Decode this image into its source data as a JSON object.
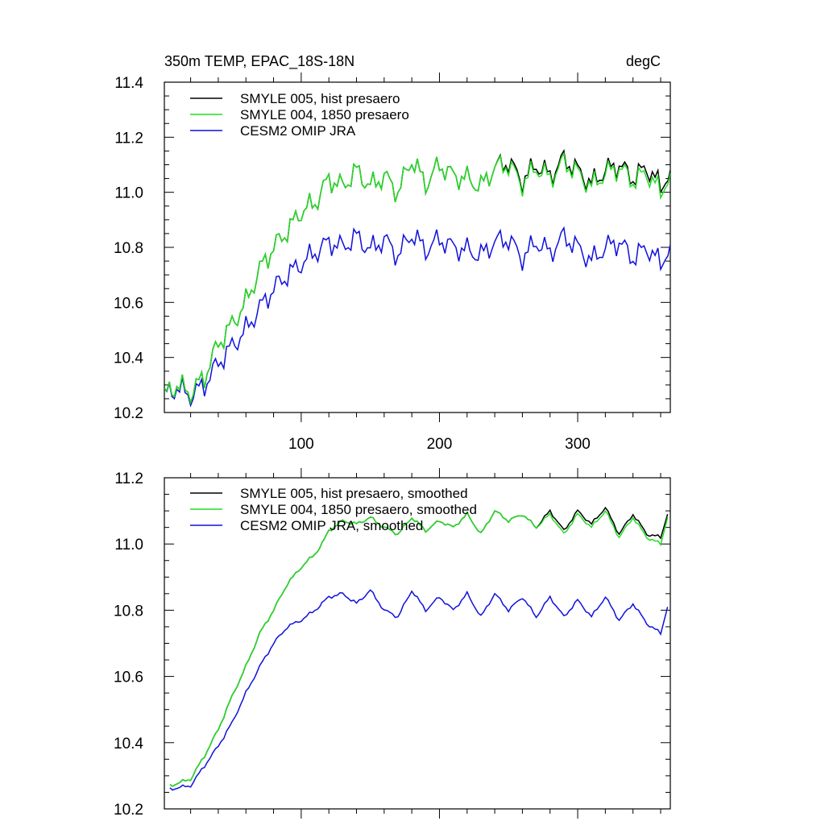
{
  "chart_data": [
    {
      "type": "line",
      "title_left": "350m TEMP, EPAC_18S-18N",
      "title_right": "degC",
      "xlabel": "",
      "ylabel": "",
      "xlim": [
        1,
        367
      ],
      "ylim": [
        10.2,
        11.4
      ],
      "xticks": [
        100,
        200,
        300
      ],
      "xtick_labels": [
        "100",
        "200",
        "300"
      ],
      "yticks": [
        10.2,
        10.4,
        10.6,
        10.8,
        11.0,
        11.2,
        11.4
      ],
      "ytick_labels": [
        "10.2",
        "10.4",
        "10.6",
        "10.8",
        "11.0",
        "11.2",
        "11.4"
      ],
      "legend_position": "top-left",
      "series": [
        {
          "name": "SMYLE 005, hist presaero",
          "color": "#000000",
          "x": [
            1,
            10,
            20,
            30,
            40,
            50,
            60,
            70,
            80,
            90,
            100,
            110,
            120,
            130,
            140,
            150,
            160,
            170,
            180,
            190,
            200,
            210,
            220,
            230,
            240,
            250,
            260,
            270,
            280,
            290,
            300,
            310,
            320,
            330,
            340,
            350,
            360,
            367
          ],
          "values": [
            10.26,
            10.3,
            10.27,
            10.33,
            10.45,
            10.52,
            10.6,
            10.72,
            10.8,
            10.86,
            10.93,
            10.96,
            11.05,
            11.02,
            11.08,
            11.02,
            11.06,
            11.0,
            11.12,
            11.03,
            11.1,
            11.06,
            11.05,
            11.02,
            11.09,
            11.11,
            11.04,
            11.1,
            11.06,
            11.12,
            11.08,
            11.03,
            11.08,
            11.1,
            11.05,
            11.09,
            11.02,
            11.08
          ]
        },
        {
          "name": "SMYLE 004, 1850 presaero",
          "color": "#22dd22",
          "x": [
            1,
            10,
            20,
            30,
            40,
            50,
            60,
            70,
            80,
            90,
            100,
            110,
            120,
            130,
            140,
            150,
            160,
            170,
            180,
            190,
            200,
            210,
            220,
            230,
            240,
            250,
            260,
            270,
            280,
            290,
            300,
            310,
            320,
            330,
            340,
            350,
            360,
            367
          ],
          "values": [
            10.26,
            10.3,
            10.27,
            10.33,
            10.45,
            10.52,
            10.6,
            10.72,
            10.8,
            10.86,
            10.93,
            10.96,
            11.05,
            11.02,
            11.08,
            11.02,
            11.06,
            11.0,
            11.12,
            11.03,
            11.1,
            11.06,
            11.05,
            11.02,
            11.09,
            11.1,
            11.03,
            11.09,
            11.05,
            11.11,
            11.07,
            11.02,
            11.07,
            11.09,
            11.04,
            11.07,
            11.0,
            11.07
          ]
        },
        {
          "name": "CESM2 OMIP JRA",
          "color": "#1010dd",
          "x": [
            1,
            10,
            20,
            30,
            40,
            50,
            60,
            70,
            80,
            90,
            100,
            110,
            120,
            130,
            140,
            150,
            160,
            170,
            180,
            190,
            200,
            210,
            220,
            230,
            240,
            250,
            260,
            270,
            280,
            290,
            300,
            310,
            320,
            330,
            340,
            350,
            360,
            367
          ],
          "values": [
            10.26,
            10.29,
            10.26,
            10.3,
            10.38,
            10.44,
            10.5,
            10.58,
            10.65,
            10.7,
            10.74,
            10.78,
            10.82,
            10.8,
            10.84,
            10.79,
            10.83,
            10.77,
            10.85,
            10.79,
            10.83,
            10.8,
            10.79,
            10.77,
            10.82,
            10.83,
            10.76,
            10.82,
            10.78,
            10.84,
            10.8,
            10.75,
            10.8,
            10.82,
            10.76,
            10.8,
            10.74,
            10.81
          ]
        }
      ]
    },
    {
      "type": "line",
      "title_left": "",
      "title_right": "",
      "xlabel": "",
      "ylabel": "",
      "xlim": [
        1,
        367
      ],
      "ylim": [
        10.2,
        11.2
      ],
      "xticks": [
        100,
        200,
        300
      ],
      "xtick_labels": [],
      "yticks": [
        10.2,
        10.4,
        10.6,
        10.8,
        11.0,
        11.2
      ],
      "ytick_labels": [
        "10.2",
        "10.4",
        "10.6",
        "10.8",
        "11.0",
        "11.2"
      ],
      "legend_position": "top-left",
      "series": [
        {
          "name": "SMYLE 005, hist presaero, smoothed",
          "color": "#000000",
          "x": [
            5,
            20,
            30,
            40,
            50,
            60,
            70,
            80,
            90,
            100,
            110,
            115,
            120,
            130,
            140,
            150,
            160,
            170,
            180,
            190,
            200,
            210,
            220,
            230,
            240,
            250,
            260,
            270,
            280,
            290,
            300,
            310,
            320,
            330,
            340,
            350,
            360,
            365
          ],
          "values": [
            10.27,
            10.29,
            10.36,
            10.44,
            10.54,
            10.63,
            10.73,
            10.8,
            10.88,
            10.93,
            10.97,
            11.0,
            11.04,
            11.07,
            11.06,
            11.08,
            11.05,
            11.03,
            11.08,
            11.04,
            11.07,
            11.05,
            11.09,
            11.03,
            11.1,
            11.07,
            11.09,
            11.05,
            11.1,
            11.04,
            11.1,
            11.06,
            11.11,
            11.03,
            11.09,
            11.03,
            11.02,
            11.09
          ]
        },
        {
          "name": "SMYLE 004, 1850 presaero, smoothed",
          "color": "#22dd22",
          "x": [
            5,
            20,
            30,
            40,
            50,
            60,
            70,
            80,
            90,
            100,
            110,
            115,
            120,
            130,
            140,
            150,
            160,
            170,
            180,
            190,
            200,
            210,
            220,
            230,
            240,
            250,
            260,
            270,
            280,
            290,
            300,
            310,
            320,
            330,
            340,
            350,
            360,
            365
          ],
          "values": [
            10.27,
            10.29,
            10.36,
            10.44,
            10.54,
            10.63,
            10.73,
            10.8,
            10.88,
            10.93,
            10.97,
            11.0,
            11.04,
            11.07,
            11.06,
            11.08,
            11.05,
            11.03,
            11.08,
            11.04,
            11.07,
            11.05,
            11.09,
            11.03,
            11.1,
            11.07,
            11.09,
            11.05,
            11.09,
            11.03,
            11.09,
            11.05,
            11.1,
            11.02,
            11.08,
            11.02,
            11.0,
            11.08
          ]
        },
        {
          "name": "CESM2 OMIP JRA, smoothed",
          "color": "#1010dd",
          "x": [
            5,
            20,
            30,
            40,
            50,
            60,
            70,
            80,
            90,
            100,
            110,
            115,
            120,
            130,
            140,
            150,
            160,
            170,
            180,
            190,
            200,
            210,
            220,
            230,
            240,
            250,
            260,
            270,
            280,
            290,
            300,
            310,
            320,
            330,
            340,
            350,
            360,
            365
          ],
          "values": [
            10.26,
            10.27,
            10.33,
            10.39,
            10.46,
            10.55,
            10.63,
            10.7,
            10.75,
            10.77,
            10.8,
            10.82,
            10.84,
            10.85,
            10.82,
            10.86,
            10.8,
            10.78,
            10.86,
            10.8,
            10.84,
            10.8,
            10.85,
            10.78,
            10.85,
            10.8,
            10.84,
            10.78,
            10.84,
            10.78,
            10.83,
            10.78,
            10.84,
            10.77,
            10.82,
            10.76,
            10.73,
            10.81
          ]
        }
      ]
    }
  ]
}
